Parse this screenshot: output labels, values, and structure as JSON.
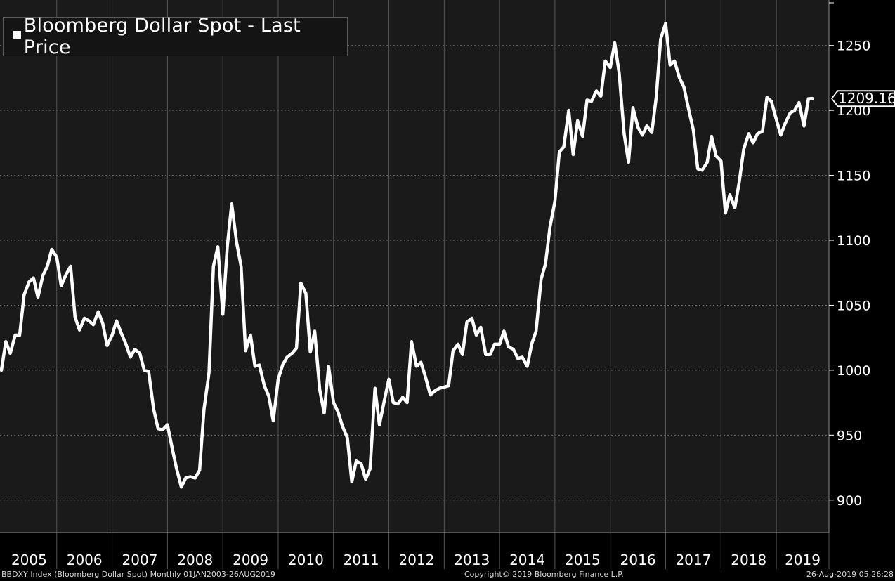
{
  "chart_data": {
    "type": "line",
    "legend": {
      "label": "Bloomberg Dollar Spot - Last Price",
      "position": "top-left"
    },
    "x_tick_labels": [
      "2005",
      "2006",
      "2007",
      "2008",
      "2009",
      "2010",
      "2011",
      "2012",
      "2013",
      "2014",
      "2015",
      "2016",
      "2017",
      "2018",
      "2019"
    ],
    "y_tick_labels": [
      "900",
      "950",
      "1000",
      "1050",
      "1100",
      "1150",
      "1200",
      "1250"
    ],
    "ylim": [
      875,
      1285
    ],
    "xlim": [
      2005.0,
      2019.9
    ],
    "grid": true,
    "last_value_label": "1209.16",
    "series": [
      {
        "color": "#ffffff",
        "points": [
          [
            2005.0,
            1000
          ],
          [
            2005.08,
            1022
          ],
          [
            2005.16,
            1013
          ],
          [
            2005.25,
            1027
          ],
          [
            2005.33,
            1027
          ],
          [
            2005.41,
            1058
          ],
          [
            2005.5,
            1068
          ],
          [
            2005.58,
            1071
          ],
          [
            2005.66,
            1056
          ],
          [
            2005.75,
            1073
          ],
          [
            2005.83,
            1080
          ],
          [
            2005.91,
            1093
          ],
          [
            2006.0,
            1087
          ],
          [
            2006.08,
            1065
          ],
          [
            2006.16,
            1073
          ],
          [
            2006.25,
            1080
          ],
          [
            2006.33,
            1041
          ],
          [
            2006.41,
            1031
          ],
          [
            2006.5,
            1040
          ],
          [
            2006.58,
            1038
          ],
          [
            2006.66,
            1035
          ],
          [
            2006.75,
            1045
          ],
          [
            2006.83,
            1036
          ],
          [
            2006.91,
            1019
          ],
          [
            2007.0,
            1027
          ],
          [
            2007.08,
            1038
          ],
          [
            2007.16,
            1029
          ],
          [
            2007.25,
            1020
          ],
          [
            2007.33,
            1010
          ],
          [
            2007.41,
            1016
          ],
          [
            2007.5,
            1013
          ],
          [
            2007.58,
            1000
          ],
          [
            2007.66,
            999
          ],
          [
            2007.75,
            970
          ],
          [
            2007.83,
            955
          ],
          [
            2007.91,
            954
          ],
          [
            2008.0,
            958
          ],
          [
            2008.08,
            941
          ],
          [
            2008.16,
            925
          ],
          [
            2008.25,
            910
          ],
          [
            2008.33,
            917
          ],
          [
            2008.41,
            918
          ],
          [
            2008.5,
            917
          ],
          [
            2008.58,
            923
          ],
          [
            2008.66,
            970
          ],
          [
            2008.75,
            998
          ],
          [
            2008.83,
            1080
          ],
          [
            2008.91,
            1095
          ],
          [
            2009.0,
            1043
          ],
          [
            2009.08,
            1095
          ],
          [
            2009.16,
            1128
          ],
          [
            2009.25,
            1098
          ],
          [
            2009.33,
            1080
          ],
          [
            2009.41,
            1015
          ],
          [
            2009.5,
            1027
          ],
          [
            2009.58,
            1003
          ],
          [
            2009.66,
            1004
          ],
          [
            2009.75,
            988
          ],
          [
            2009.83,
            980
          ],
          [
            2009.91,
            961
          ],
          [
            2010.0,
            993
          ],
          [
            2010.08,
            1004
          ],
          [
            2010.16,
            1010
          ],
          [
            2010.25,
            1013
          ],
          [
            2010.33,
            1017
          ],
          [
            2010.41,
            1067
          ],
          [
            2010.5,
            1059
          ],
          [
            2010.58,
            1014
          ],
          [
            2010.66,
            1030
          ],
          [
            2010.75,
            985
          ],
          [
            2010.83,
            967
          ],
          [
            2010.91,
            1003
          ],
          [
            2011.0,
            975
          ],
          [
            2011.08,
            968
          ],
          [
            2011.16,
            957
          ],
          [
            2011.25,
            948
          ],
          [
            2011.33,
            914
          ],
          [
            2011.41,
            930
          ],
          [
            2011.5,
            928
          ],
          [
            2011.58,
            916
          ],
          [
            2011.66,
            924
          ],
          [
            2011.75,
            986
          ],
          [
            2011.83,
            958
          ],
          [
            2011.91,
            975
          ],
          [
            2012.0,
            993
          ],
          [
            2012.08,
            975
          ],
          [
            2012.16,
            974
          ],
          [
            2012.25,
            979
          ],
          [
            2012.33,
            975
          ],
          [
            2012.41,
            1022
          ],
          [
            2012.5,
            1003
          ],
          [
            2012.58,
            1006
          ],
          [
            2012.66,
            995
          ],
          [
            2012.75,
            981
          ],
          [
            2012.83,
            984
          ],
          [
            2012.91,
            986
          ],
          [
            2013.0,
            987
          ],
          [
            2013.08,
            988
          ],
          [
            2013.16,
            1015
          ],
          [
            2013.25,
            1020
          ],
          [
            2013.33,
            1012
          ],
          [
            2013.41,
            1037
          ],
          [
            2013.5,
            1040
          ],
          [
            2013.58,
            1027
          ],
          [
            2013.66,
            1033
          ],
          [
            2013.75,
            1012
          ],
          [
            2013.83,
            1012
          ],
          [
            2013.91,
            1020
          ],
          [
            2014.0,
            1020
          ],
          [
            2014.08,
            1030
          ],
          [
            2014.16,
            1018
          ],
          [
            2014.25,
            1016
          ],
          [
            2014.33,
            1009
          ],
          [
            2014.41,
            1010
          ],
          [
            2014.5,
            1003
          ],
          [
            2014.58,
            1020
          ],
          [
            2014.66,
            1030
          ],
          [
            2014.75,
            1070
          ],
          [
            2014.83,
            1082
          ],
          [
            2014.91,
            1110
          ],
          [
            2015.0,
            1130
          ],
          [
            2015.08,
            1168
          ],
          [
            2015.16,
            1172
          ],
          [
            2015.25,
            1200
          ],
          [
            2015.33,
            1166
          ],
          [
            2015.41,
            1192
          ],
          [
            2015.5,
            1180
          ],
          [
            2015.58,
            1208
          ],
          [
            2015.66,
            1207
          ],
          [
            2015.75,
            1215
          ],
          [
            2015.83,
            1211
          ],
          [
            2015.91,
            1238
          ],
          [
            2016.0,
            1233
          ],
          [
            2016.08,
            1252
          ],
          [
            2016.16,
            1229
          ],
          [
            2016.25,
            1182
          ],
          [
            2016.33,
            1160
          ],
          [
            2016.41,
            1202
          ],
          [
            2016.5,
            1187
          ],
          [
            2016.58,
            1181
          ],
          [
            2016.66,
            1188
          ],
          [
            2016.75,
            1183
          ],
          [
            2016.83,
            1210
          ],
          [
            2016.91,
            1255
          ],
          [
            2017.0,
            1267
          ],
          [
            2017.08,
            1235
          ],
          [
            2017.16,
            1238
          ],
          [
            2017.25,
            1225
          ],
          [
            2017.33,
            1218
          ],
          [
            2017.41,
            1202
          ],
          [
            2017.5,
            1185
          ],
          [
            2017.58,
            1155
          ],
          [
            2017.66,
            1154
          ],
          [
            2017.75,
            1160
          ],
          [
            2017.83,
            1180
          ],
          [
            2017.91,
            1165
          ],
          [
            2018.0,
            1161
          ],
          [
            2018.08,
            1121
          ],
          [
            2018.16,
            1135
          ],
          [
            2018.25,
            1125
          ],
          [
            2018.33,
            1145
          ],
          [
            2018.41,
            1170
          ],
          [
            2018.5,
            1182
          ],
          [
            2018.58,
            1175
          ],
          [
            2018.66,
            1182
          ],
          [
            2018.75,
            1184
          ],
          [
            2018.83,
            1210
          ],
          [
            2018.91,
            1207
          ],
          [
            2019.0,
            1193
          ],
          [
            2019.08,
            1181
          ],
          [
            2019.16,
            1190
          ],
          [
            2019.25,
            1198
          ],
          [
            2019.33,
            1200
          ],
          [
            2019.41,
            1206
          ],
          [
            2019.5,
            1188
          ],
          [
            2019.58,
            1209
          ],
          [
            2019.65,
            1209.16
          ]
        ]
      }
    ]
  },
  "footer": {
    "left": "BBDXY Index (Bloomberg Dollar Spot)  Monthly 01JAN2003-26AUG2019",
    "center": "Copyright© 2019 Bloomberg Finance L.P.",
    "right": "26-Aug-2019 05:26:28"
  }
}
